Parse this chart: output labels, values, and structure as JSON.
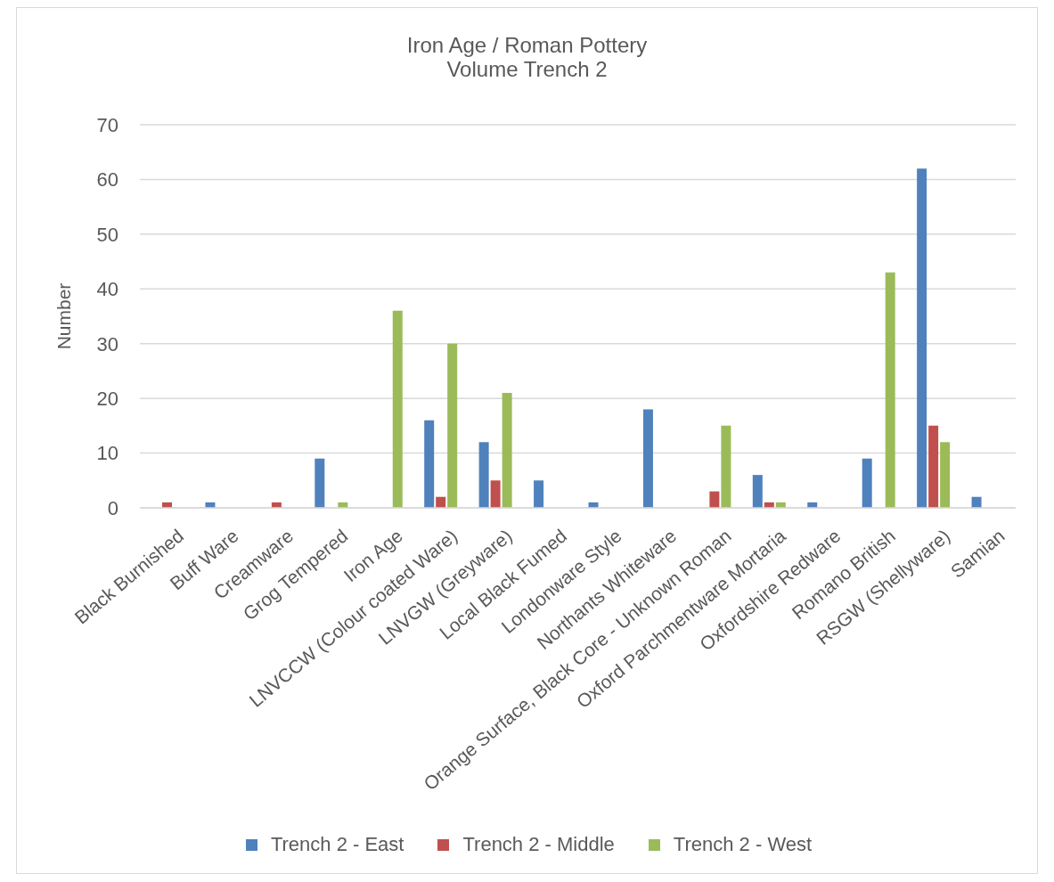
{
  "chart_data": {
    "type": "bar",
    "title": "Iron Age / Roman Pottery",
    "subtitle": "Volume Trench 2",
    "ylabel": "Number",
    "categories": [
      "Black Burnished",
      "Buff Ware",
      "Creamware",
      "Grog Tempered",
      "Iron Age",
      "LNVCCW (Colour coated Ware)",
      "LNVGW (Greyware)",
      "Local Black Fumed",
      "Londonware Style",
      "Northants Whiteware",
      "Orange Surface, Black Core - Unknown Roman",
      "Oxford Parchmentware Mortaria",
      "Oxfordshire Redware",
      "Romano British",
      "RSGW (Shellyware)",
      "Samian"
    ],
    "series": [
      {
        "name": "Trench 2 - East",
        "color": "#4f81bd",
        "values": [
          0,
          1,
          0,
          9,
          0,
          16,
          12,
          5,
          1,
          18,
          0,
          6,
          1,
          9,
          62,
          2
        ]
      },
      {
        "name": "Trench 2 - Middle",
        "color": "#c0504d",
        "values": [
          1,
          0,
          1,
          0,
          0,
          2,
          5,
          0,
          0,
          0,
          3,
          1,
          0,
          0,
          15,
          0
        ]
      },
      {
        "name": "Trench 2 - West",
        "color": "#9bbb59",
        "values": [
          0,
          0,
          0,
          1,
          36,
          30,
          21,
          0,
          0,
          0,
          15,
          1,
          0,
          43,
          12,
          0
        ]
      }
    ],
    "ylim": [
      0,
      70
    ],
    "yticks": [
      0,
      10,
      20,
      30,
      40,
      50,
      60,
      70
    ],
    "grid": "y",
    "legend": "bottom"
  }
}
